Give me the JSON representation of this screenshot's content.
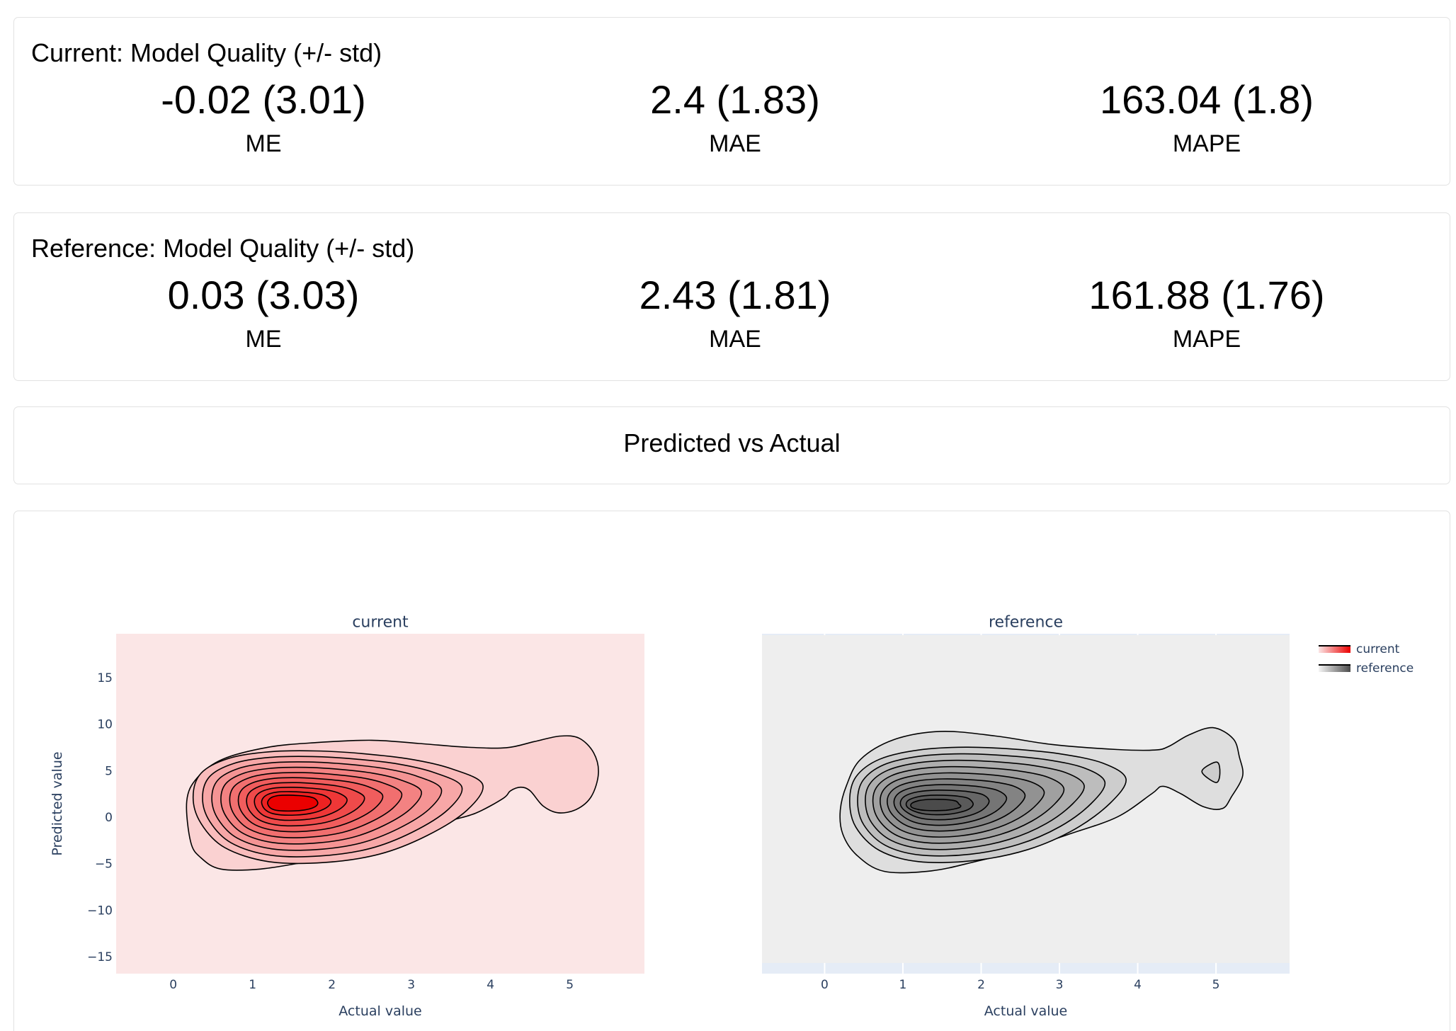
{
  "metrics_cards": [
    {
      "title": "Current: Model Quality (+/- std)",
      "metrics": [
        {
          "value": "-0.02 (3.01)",
          "label": "ME"
        },
        {
          "value": "2.4 (1.83)",
          "label": "MAE"
        },
        {
          "value": "163.04 (1.8)",
          "label": "MAPE"
        }
      ]
    },
    {
      "title": "Reference: Model Quality (+/- std)",
      "metrics": [
        {
          "value": "0.03 (3.03)",
          "label": "ME"
        },
        {
          "value": "2.43 (1.81)",
          "label": "MAE"
        },
        {
          "value": "161.88 (1.76)",
          "label": "MAPE"
        }
      ]
    }
  ],
  "section": {
    "title": "Predicted vs Actual"
  },
  "chart_data": {
    "type": "contour",
    "title": "Predicted vs Actual",
    "xlabel": "Actual value",
    "ylabel": "Predicted value",
    "x_ticks": [
      0,
      1,
      2,
      3,
      4,
      5
    ],
    "x_tick_labels": [
      "0",
      "1",
      "2",
      "3",
      "4",
      "5"
    ],
    "y_ticks": [
      15,
      10,
      5,
      0,
      -5,
      -10,
      -15
    ],
    "y_tick_labels": [
      "15",
      "10",
      "5",
      "0",
      "−5",
      "−10",
      "−15"
    ],
    "grid": false,
    "plot_bg": "#E5ECF6",
    "legend": {
      "position": "top-right",
      "entries": [
        {
          "name": "current",
          "gradient": [
            "#FBE6E6",
            "#EB0000"
          ]
        },
        {
          "name": "reference",
          "gradient": [
            "#F5F5F5",
            "#4B4B4B"
          ]
        }
      ]
    },
    "subplots": [
      {
        "title": "current",
        "xrange": [
          -0.72,
          5.94
        ],
        "yrange": [
          -16.75,
          19.8
        ],
        "bg_yrange": [
          -16.75,
          19.8
        ],
        "bg_color": "#FBE6E6",
        "peak": [
          1.5,
          1.6
        ],
        "colors": [
          "#FAD1D1",
          "#F9BCBC",
          "#F7A7A7",
          "#F59494",
          "#F38282",
          "#F16F6F",
          "#F05D5D",
          "#EF4A4A",
          "#EE3737",
          "#EE2222",
          "#EB0000"
        ],
        "outer": [
          [
            0.17,
            1.8
          ],
          [
            0.3,
            4.3
          ],
          [
            0.62,
            6.3
          ],
          [
            1.2,
            7.6
          ],
          [
            1.8,
            8.1
          ],
          [
            2.5,
            8.35
          ],
          [
            3.1,
            8.0
          ],
          [
            3.7,
            7.6
          ],
          [
            4.2,
            7.55
          ],
          [
            4.55,
            8.2
          ],
          [
            4.88,
            8.8
          ],
          [
            5.12,
            8.55
          ],
          [
            5.3,
            7.0
          ],
          [
            5.36,
            4.8
          ],
          [
            5.27,
            2.3
          ],
          [
            5.08,
            0.9
          ],
          [
            4.85,
            0.55
          ],
          [
            4.66,
            1.3
          ],
          [
            4.5,
            2.9
          ],
          [
            4.38,
            3.3
          ],
          [
            4.25,
            2.9
          ],
          [
            4.16,
            2.1
          ],
          [
            3.81,
            0.5
          ],
          [
            3.45,
            -0.4
          ],
          [
            3.1,
            -1.45
          ],
          [
            2.75,
            -2.7
          ],
          [
            2.2,
            -4.0
          ],
          [
            1.7,
            -4.7
          ],
          [
            1.1,
            -5.5
          ],
          [
            0.6,
            -5.5
          ],
          [
            0.35,
            -4.3
          ],
          [
            0.22,
            -2.6
          ]
        ],
        "body": [
          [
            3.9,
            3.6
          ],
          [
            3.5,
            5.3
          ],
          [
            3.0,
            6.3
          ],
          [
            2.4,
            6.9
          ],
          [
            1.8,
            7.2
          ],
          [
            1.2,
            7.1
          ],
          [
            0.7,
            6.4
          ],
          [
            0.35,
            4.8
          ],
          [
            0.25,
            2.2
          ],
          [
            0.35,
            -0.6
          ],
          [
            0.65,
            -3.2
          ],
          [
            1.2,
            -4.7
          ],
          [
            1.9,
            -4.8
          ],
          [
            2.6,
            -3.9
          ],
          [
            3.2,
            -1.9
          ],
          [
            3.7,
            0.8
          ]
        ],
        "inner": [
          [
            1.82,
            1.7
          ],
          [
            1.78,
            2.1
          ],
          [
            1.7,
            2.3
          ],
          [
            1.58,
            2.4
          ],
          [
            1.45,
            2.45
          ],
          [
            1.32,
            2.4
          ],
          [
            1.24,
            2.2
          ],
          [
            1.2,
            1.9
          ],
          [
            1.19,
            1.55
          ],
          [
            1.22,
            1.1
          ],
          [
            1.28,
            0.85
          ],
          [
            1.38,
            0.75
          ],
          [
            1.52,
            0.75
          ],
          [
            1.65,
            0.85
          ],
          [
            1.75,
            1.05
          ],
          [
            1.81,
            1.35
          ]
        ],
        "extra": [],
        "extra_color": "#F9BCBC"
      },
      {
        "title": "reference",
        "xrange": [
          -0.8,
          5.94
        ],
        "yrange": [
          -16.75,
          19.8
        ],
        "bg_yrange": [
          -15.6,
          19.65
        ],
        "bg_color": "#EEEEEE",
        "peak": [
          1.42,
          1.35
        ],
        "colors": [
          "#DEDEDE",
          "#CDCDCD",
          "#BDBDBD",
          "#AEAEAE",
          "#A0A0A0",
          "#929292",
          "#838383",
          "#757575",
          "#676767",
          "#5A5A5A",
          "#4B4B4B"
        ],
        "outer": [
          [
            0.2,
            0.8
          ],
          [
            0.28,
            3.5
          ],
          [
            0.46,
            6.3
          ],
          [
            0.88,
            8.4
          ],
          [
            1.48,
            9.3
          ],
          [
            2.19,
            8.8
          ],
          [
            2.9,
            7.9
          ],
          [
            3.74,
            7.35
          ],
          [
            4.22,
            7.3
          ],
          [
            4.4,
            7.7
          ],
          [
            4.65,
            8.9
          ],
          [
            4.96,
            9.7
          ],
          [
            5.22,
            8.5
          ],
          [
            5.3,
            6.5
          ],
          [
            5.34,
            4.5
          ],
          [
            5.2,
            2.3
          ],
          [
            5.08,
            1.0
          ],
          [
            4.84,
            1.2
          ],
          [
            4.55,
            2.6
          ],
          [
            4.32,
            3.4
          ],
          [
            4.18,
            2.6
          ],
          [
            3.74,
            0.1
          ],
          [
            3.14,
            -1.7
          ],
          [
            2.54,
            -3.35
          ],
          [
            1.95,
            -4.65
          ],
          [
            1.36,
            -5.7
          ],
          [
            0.76,
            -5.75
          ],
          [
            0.41,
            -4.0
          ],
          [
            0.23,
            -1.7
          ]
        ],
        "body": [
          [
            3.85,
            4.2
          ],
          [
            3.55,
            5.9
          ],
          [
            3.0,
            6.9
          ],
          [
            2.4,
            7.4
          ],
          [
            1.8,
            7.6
          ],
          [
            1.2,
            7.3
          ],
          [
            0.7,
            6.3
          ],
          [
            0.4,
            4.4
          ],
          [
            0.32,
            1.8
          ],
          [
            0.4,
            -1.0
          ],
          [
            0.7,
            -3.5
          ],
          [
            1.2,
            -4.7
          ],
          [
            1.9,
            -4.6
          ],
          [
            2.6,
            -3.4
          ],
          [
            3.2,
            -1.2
          ],
          [
            3.65,
            1.6
          ]
        ],
        "inner": [
          [
            1.72,
            1.45
          ],
          [
            1.68,
            1.8
          ],
          [
            1.58,
            1.95
          ],
          [
            1.45,
            2.0
          ],
          [
            1.32,
            1.98
          ],
          [
            1.2,
            1.85
          ],
          [
            1.12,
            1.6
          ],
          [
            1.1,
            1.35
          ],
          [
            1.12,
            1.1
          ],
          [
            1.2,
            0.9
          ],
          [
            1.3,
            0.8
          ],
          [
            1.42,
            0.78
          ],
          [
            1.55,
            0.82
          ],
          [
            1.65,
            0.95
          ],
          [
            1.72,
            1.1
          ],
          [
            1.74,
            1.3
          ]
        ],
        "extra": [
          [
            [
              5.01,
              6.0
            ],
            [
              4.82,
              5.0
            ],
            [
              5.0,
              3.8
            ],
            [
              5.05,
              4.8
            ]
          ]
        ],
        "extra_color": "#CDCDCD"
      }
    ]
  }
}
